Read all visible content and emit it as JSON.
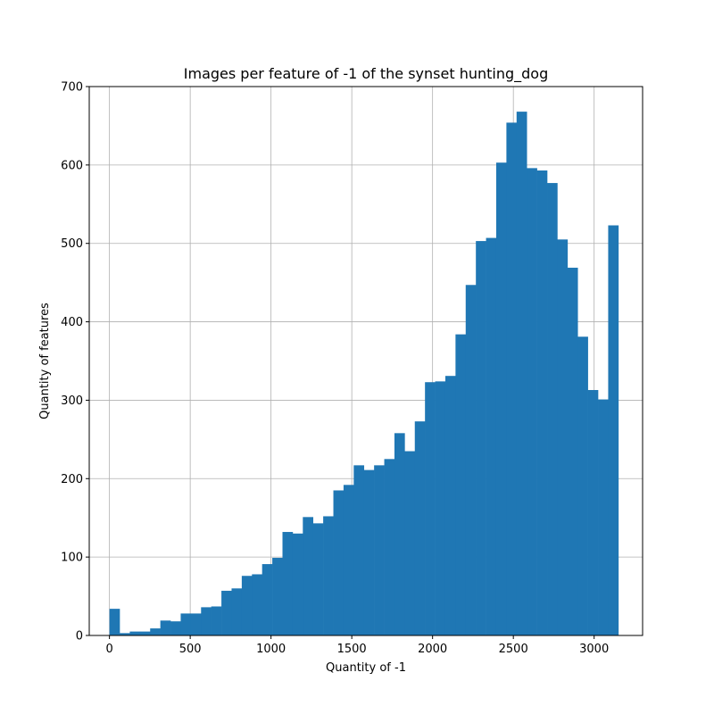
{
  "chart_data": {
    "type": "bar",
    "title": "Images per feature of -1 of the synset hunting_dog",
    "xlabel": "Quantity of -1",
    "ylabel": "Quantity of features",
    "xlim": [
      -125,
      3300
    ],
    "ylim": [
      0,
      700
    ],
    "xticks": [
      0,
      500,
      1000,
      1500,
      2000,
      2500,
      3000
    ],
    "yticks": [
      0,
      100,
      200,
      300,
      400,
      500,
      600,
      700
    ],
    "grid": true,
    "bar_color": "#1f77b4",
    "bins": {
      "start": 0,
      "width": 63,
      "counts": [
        34,
        3,
        5,
        5,
        9,
        19,
        18,
        28,
        28,
        36,
        37,
        57,
        60,
        76,
        78,
        91,
        99,
        132,
        130,
        151,
        143,
        152,
        185,
        192,
        217,
        211,
        217,
        225,
        258,
        235,
        273,
        323,
        324,
        331,
        384,
        447,
        503,
        507,
        603,
        654,
        668,
        596,
        593,
        577,
        505,
        469,
        381,
        313,
        301,
        523
      ]
    }
  }
}
